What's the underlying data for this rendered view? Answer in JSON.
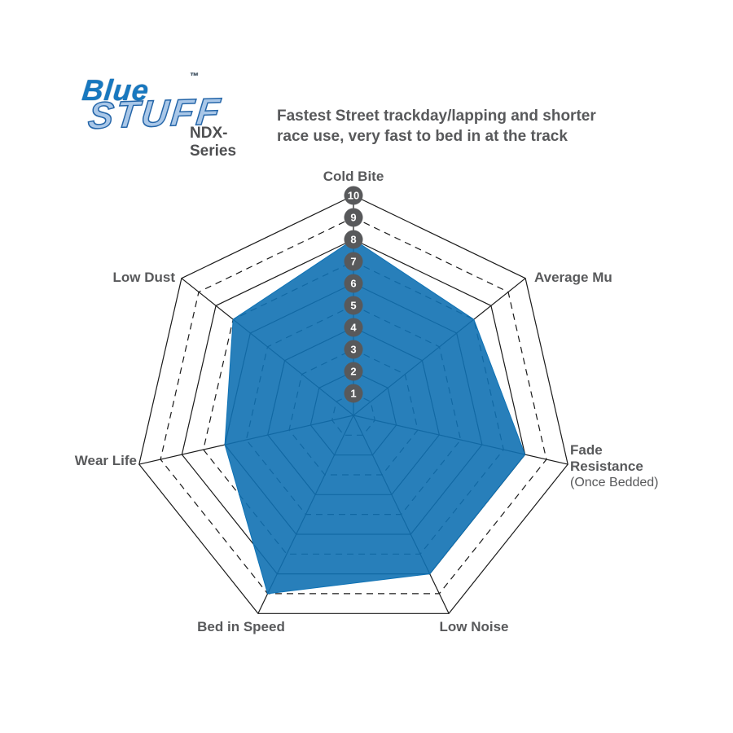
{
  "header": {
    "logo": {
      "word1": "Blue",
      "trademark": "™",
      "word2": "STUFF",
      "series": "NDX-Series"
    },
    "tagline": {
      "line1": "Fastest Street trackday/lapping and shorter",
      "line2": "race use, very fast to bed in at the track"
    }
  },
  "chart_data": {
    "type": "radar",
    "title": "",
    "categories": [
      "Cold Bite",
      "Average Mu",
      "Fade Resistance",
      "Low Noise",
      "Bed in Speed",
      "Wear Life",
      "Low Dust"
    ],
    "values": [
      8,
      7,
      8,
      8,
      9,
      6,
      7
    ],
    "fade_sublabel": "(Once Bedded)",
    "scale_ticks": [
      1,
      2,
      3,
      4,
      5,
      6,
      7,
      8,
      9,
      10
    ],
    "scale_min": 0,
    "scale_max": 10,
    "tick_axis": "Cold Bite",
    "grid": {
      "rings": 10,
      "even_rings": "solid",
      "odd_rings": "dashed",
      "spokes": 7
    },
    "legend": "none",
    "colors": {
      "series_fill": "#1171B3",
      "grid_line": "#1A1A1A",
      "badge_bg": "#58595B",
      "badge_text": "#FFFFFF",
      "label_text": "#58595B",
      "brand_blue": "#1878BF",
      "brand_light_blue": "#A9C7E8"
    }
  }
}
